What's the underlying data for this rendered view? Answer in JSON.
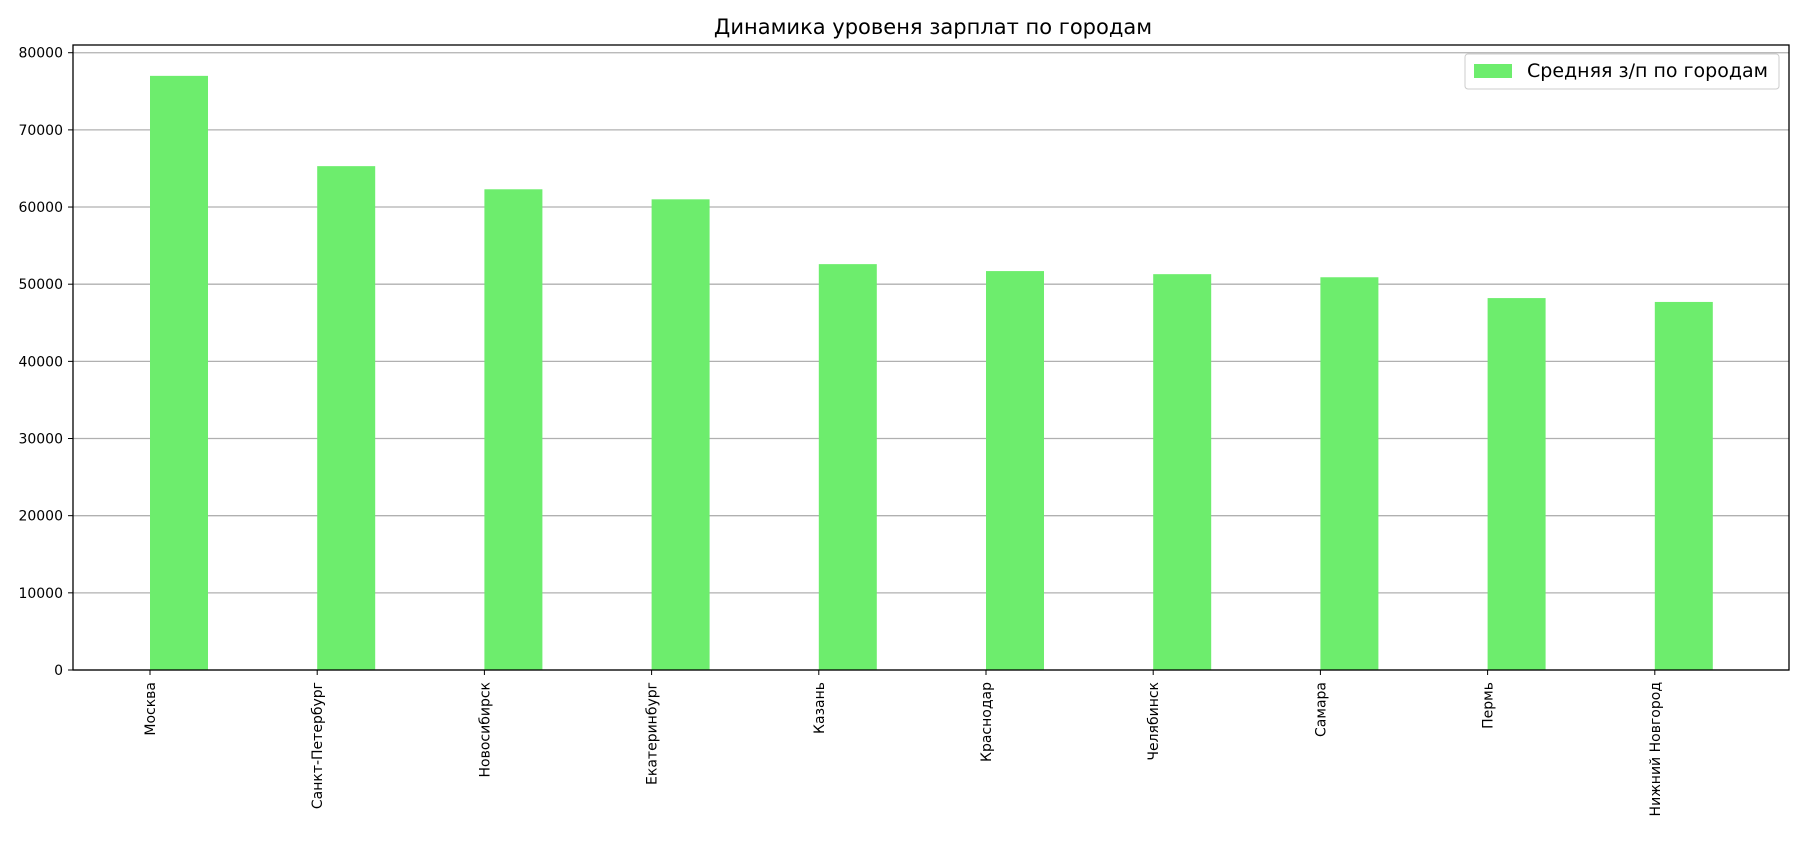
{
  "chart_data": {
    "type": "bar",
    "title": "Динамика уровеня зарплат по городам",
    "xlabel": "",
    "ylabel": "",
    "categories": [
      "Москва",
      "Санкт-Петербург",
      "Новосибирск",
      "Екатеринбург",
      "Казань",
      "Краснодар",
      "Челябинск",
      "Самара",
      "Пермь",
      "Нижний Новгород"
    ],
    "series": [
      {
        "name": "Средняя з/п по городам",
        "values": [
          77000,
          65300,
          62300,
          61000,
          52600,
          51700,
          51300,
          50900,
          48200,
          47700
        ],
        "color": "#6ded6d"
      }
    ],
    "ylim": [
      0,
      81000
    ],
    "yticks": [
      "0",
      "10000",
      "20000",
      "30000",
      "40000",
      "50000",
      "60000",
      "70000",
      "80000"
    ],
    "grid": "y",
    "legend_position": "top-right",
    "x_tick_rotation": "vertical"
  }
}
